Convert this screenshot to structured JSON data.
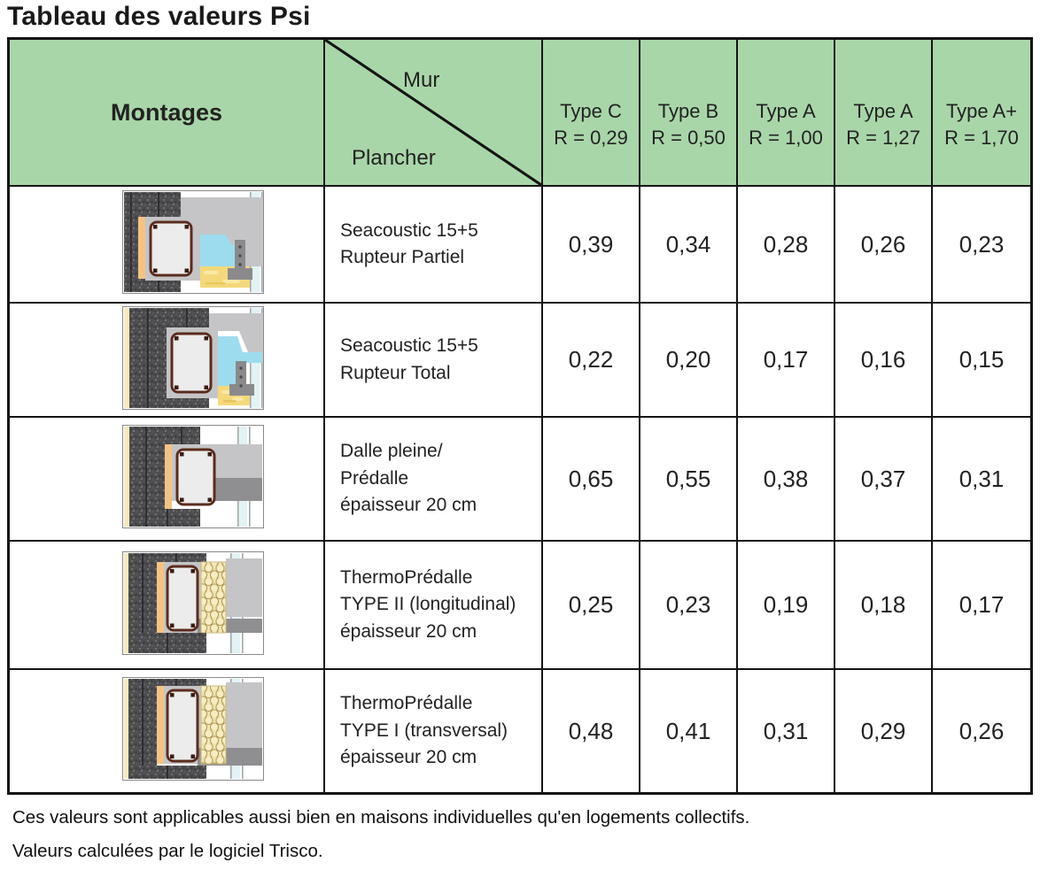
{
  "title": "Tableau des valeurs Psi",
  "table": {
    "corner_label": "Montages",
    "diagonal": {
      "top_label": "Mur",
      "bottom_label": "Plancher"
    },
    "wall_types": [
      {
        "type": "Type C",
        "r_value": "R = 0,29"
      },
      {
        "type": "Type B",
        "r_value": "R = 0,50"
      },
      {
        "type": "Type A",
        "r_value": "R = 1,00"
      },
      {
        "type": "Type A",
        "r_value": "R = 1,27"
      },
      {
        "type": "Type A+",
        "r_value": "R = 1,70"
      }
    ],
    "rows": [
      {
        "drawing": "seacoustic-rupteur-partiel",
        "label_lines": [
          "Seacoustic 15+5",
          "Rupteur Partiel"
        ],
        "values": [
          "0,39",
          "0,34",
          "0,28",
          "0,26",
          "0,23"
        ]
      },
      {
        "drawing": "seacoustic-rupteur-total",
        "label_lines": [
          "Seacoustic 15+5",
          "Rupteur Total"
        ],
        "values": [
          "0,22",
          "0,20",
          "0,17",
          "0,16",
          "0,15"
        ]
      },
      {
        "drawing": "dalle-pleine-predalle",
        "label_lines": [
          "Dalle pleine/",
          "Prédalle",
          "épaisseur 20 cm"
        ],
        "values": [
          "0,65",
          "0,55",
          "0,38",
          "0,37",
          "0,31"
        ]
      },
      {
        "drawing": "thermopredalle-type-2-longitudinal",
        "label_lines": [
          "ThermoPrédalle",
          "TYPE II (longitudinal)",
          "épaisseur 20 cm"
        ],
        "values": [
          "0,25",
          "0,23",
          "0,19",
          "0,18",
          "0,17"
        ]
      },
      {
        "drawing": "thermopredalle-type-1-transversal",
        "label_lines": [
          "ThermoPrédalle",
          "TYPE I (transversal)",
          "épaisseur 20 cm"
        ],
        "values": [
          "0,48",
          "0,41",
          "0,31",
          "0,29",
          "0,26"
        ]
      }
    ]
  },
  "footnotes": [
    "Ces valeurs sont applicables aussi bien en maisons individuelles qu'en logements collectifs.",
    "Valeurs calculées par le logiciel Trisco."
  ],
  "colors": {
    "header_green": "#a9d6a9",
    "border_black": "#141414",
    "text": "#222222"
  }
}
